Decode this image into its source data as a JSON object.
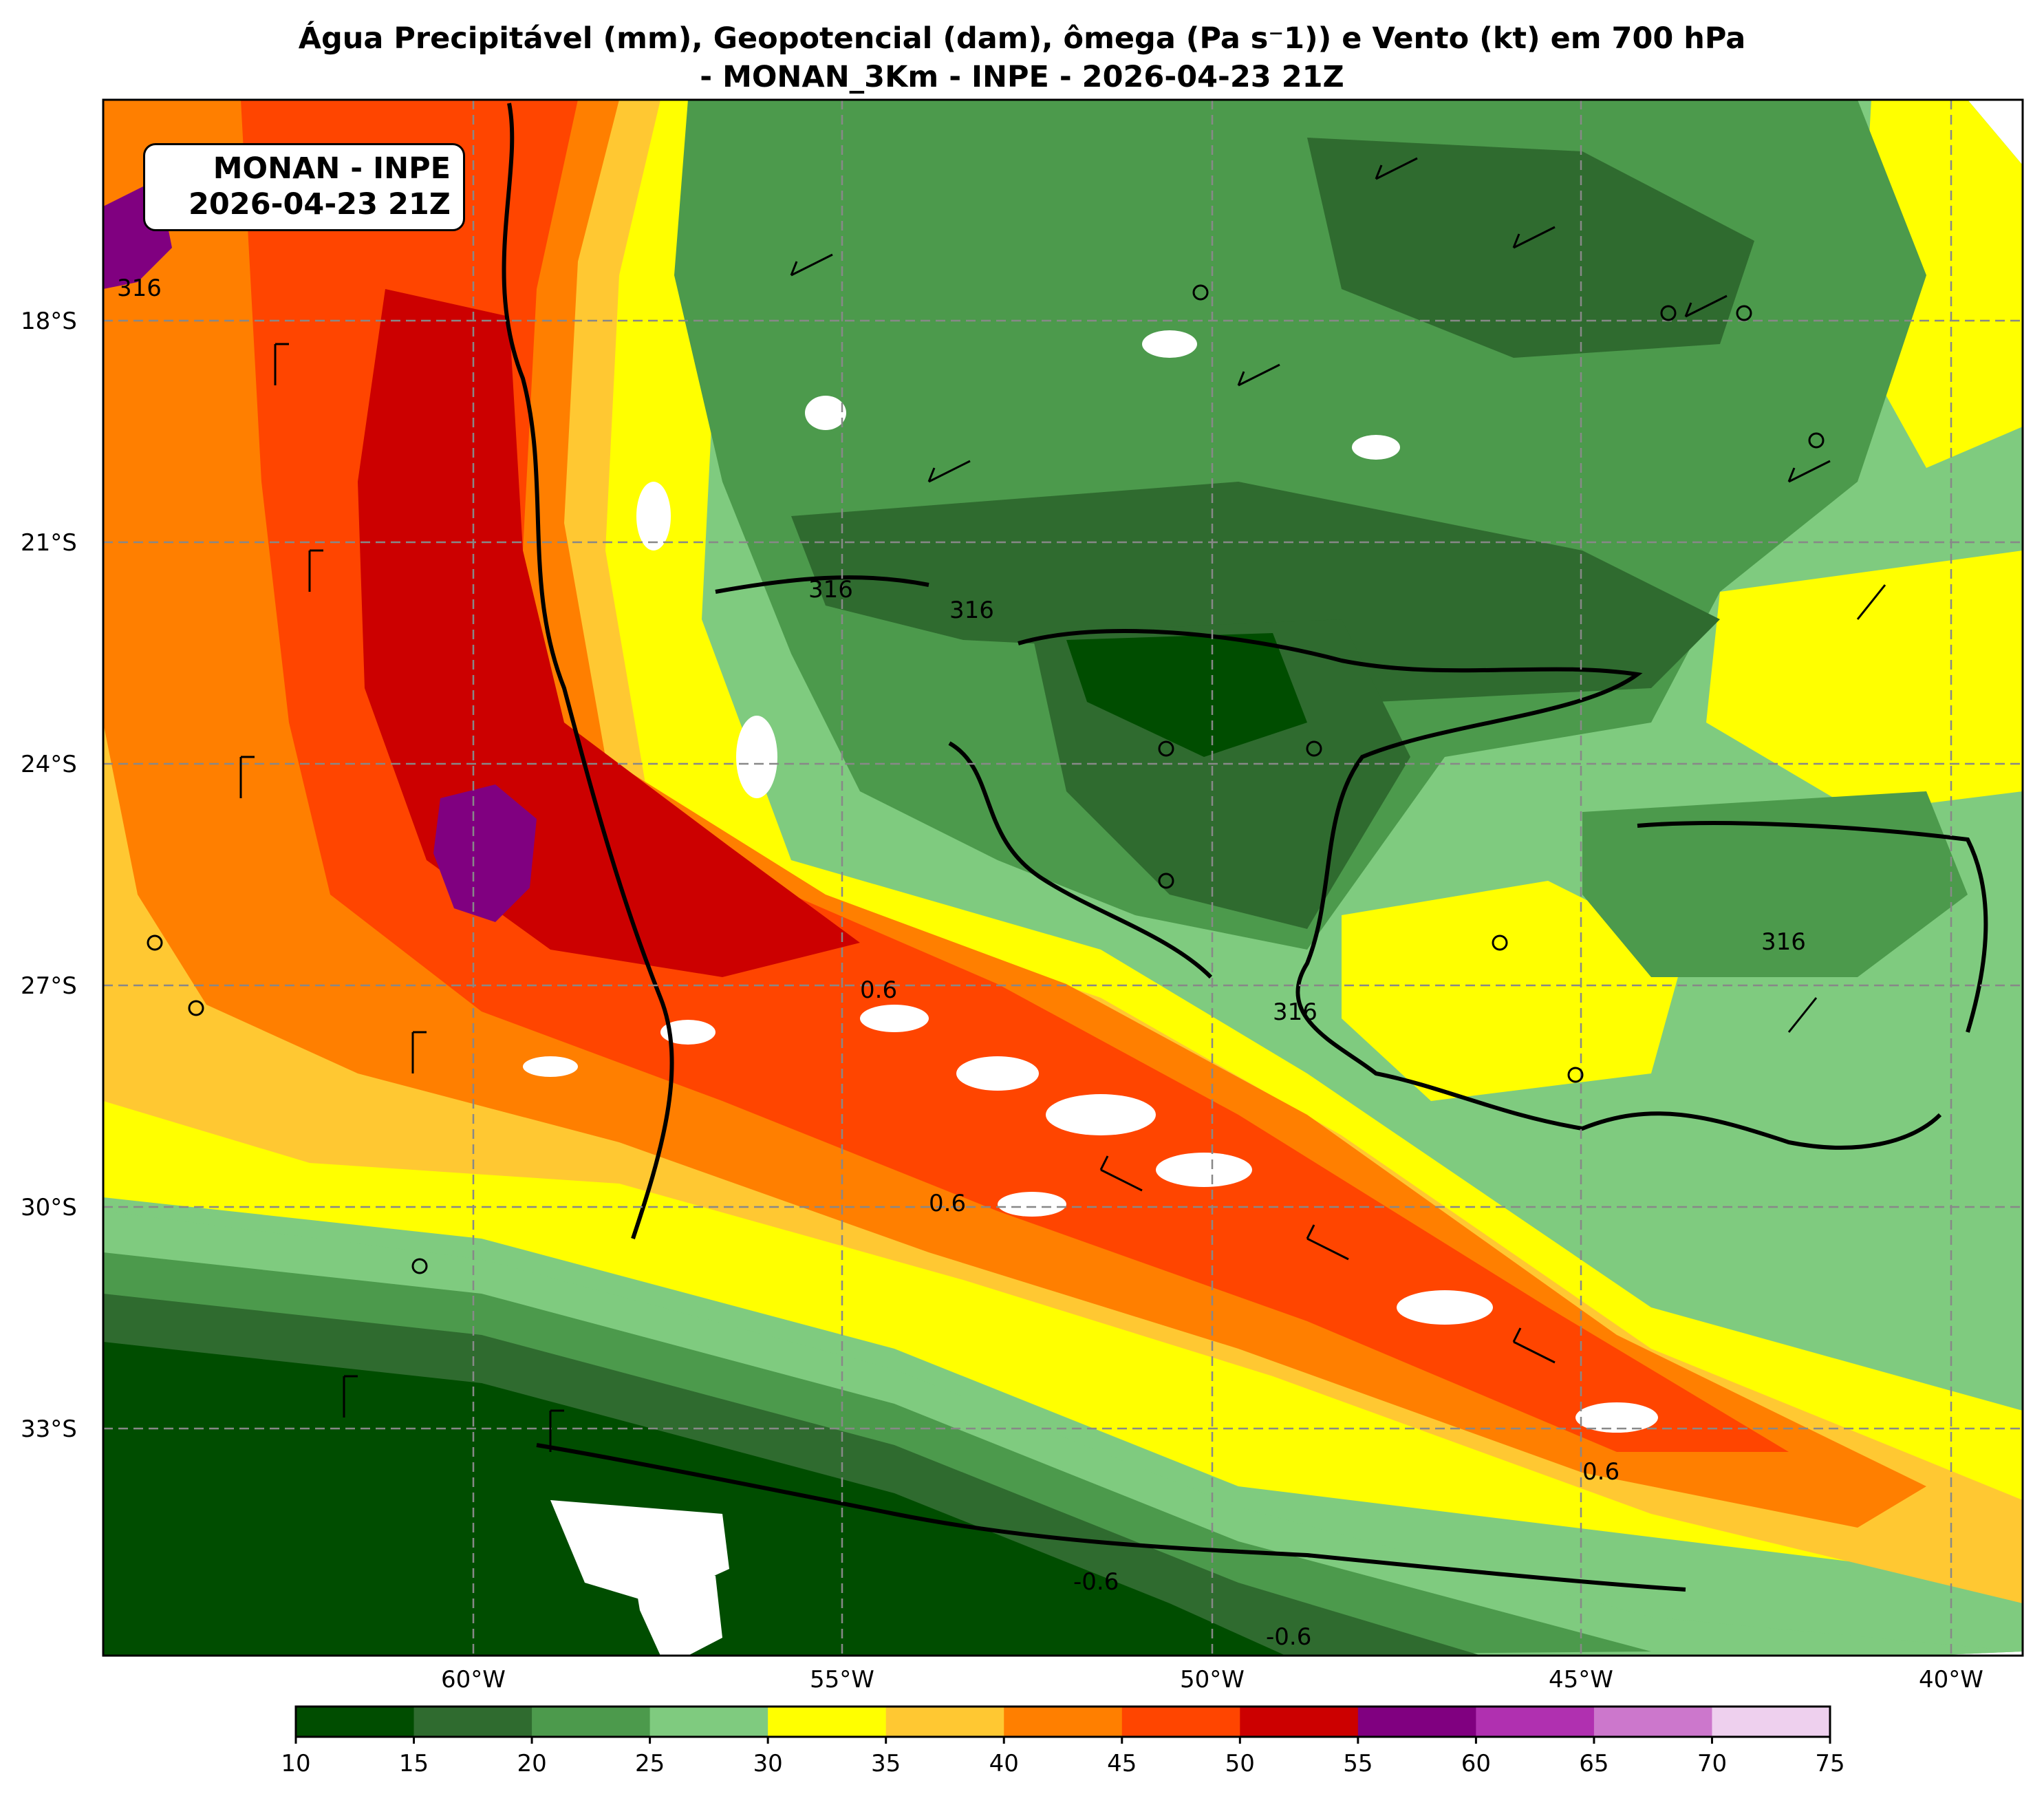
{
  "title": {
    "line1": "Água Precipitável (mm), Geopotencial (dam), ômega (Pa s⁻1)) e Vento (kt) em 700 hPa",
    "line2": "- MONAN_3Km - INPE - 2026-04-23 21Z"
  },
  "info_box": {
    "line1": "MONAN - INPE",
    "line2": "2026-04-23 21Z"
  },
  "map": {
    "lat_labels": [
      "18°S",
      "21°S",
      "24°S",
      "27°S",
      "30°S",
      "33°S"
    ],
    "lon_labels": [
      "60°W",
      "55°W",
      "50°W",
      "45°W",
      "40°W"
    ],
    "contour_labels": [
      "316",
      "316",
      "316",
      "316",
      "316"
    ],
    "omega_labels": [
      "0.6",
      "-0.6",
      "-0.6",
      "0.6",
      "0.6"
    ]
  },
  "colorbar": {
    "ticks": [
      "10",
      "15",
      "20",
      "25",
      "30",
      "35",
      "40",
      "45",
      "50",
      "55",
      "60",
      "65",
      "70",
      "75"
    ],
    "colors": [
      "#004d00",
      "#2f6b2f",
      "#4c9a4c",
      "#7fcb7f",
      "#ffff00",
      "#ffc832",
      "#ff7f00",
      "#ff4500",
      "#cc0000",
      "#800080",
      "#b030b0",
      "#cc77cc",
      "#eed0ee"
    ]
  },
  "colors": {
    "pw_10_15": "#004d00",
    "pw_15_20": "#2f6b2f",
    "pw_20_25": "#4c9a4c",
    "pw_25_30": "#7fcb7f",
    "pw_30_35": "#ffff00",
    "pw_35_40": "#ffc832",
    "pw_40_45": "#ff7f00",
    "pw_45_50": "#ff4500",
    "pw_50_55": "#cc0000",
    "pw_55_60": "#800080"
  }
}
